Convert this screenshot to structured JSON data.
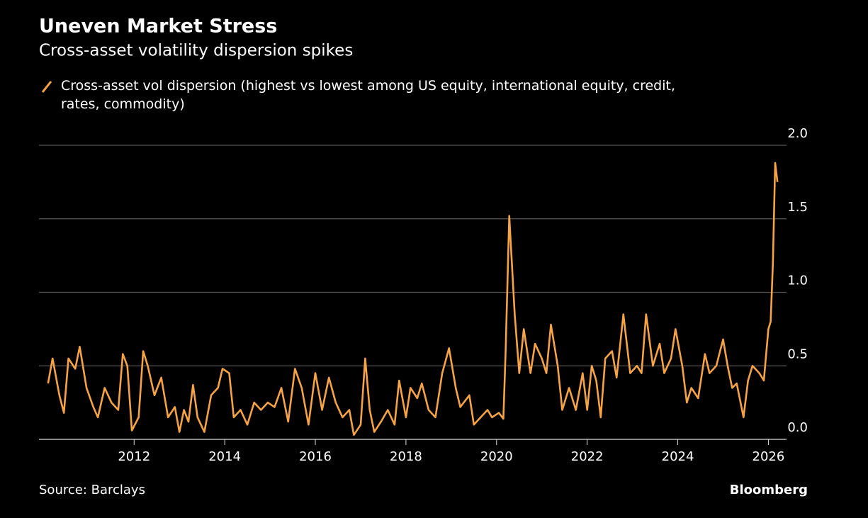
{
  "chart_data": {
    "type": "line",
    "title": "Uneven Market Stress",
    "subtitle": "Cross-asset volatility dispersion spikes",
    "source": "Source: Barclays",
    "brand": "Bloomberg",
    "grid": true,
    "x": [
      2010.1,
      2010.2,
      2010.35,
      2010.45,
      2010.55,
      2010.7,
      2010.8,
      2010.95,
      2011.1,
      2011.2,
      2011.35,
      2011.5,
      2011.65,
      2011.75,
      2011.85,
      2011.95,
      2012.1,
      2012.2,
      2012.3,
      2012.45,
      2012.6,
      2012.75,
      2012.9,
      2013.0,
      2013.1,
      2013.2,
      2013.3,
      2013.4,
      2013.55,
      2013.7,
      2013.85,
      2013.95,
      2014.1,
      2014.2,
      2014.35,
      2014.5,
      2014.65,
      2014.8,
      2014.95,
      2015.1,
      2015.25,
      2015.4,
      2015.55,
      2015.7,
      2015.85,
      2016.0,
      2016.15,
      2016.3,
      2016.45,
      2016.6,
      2016.75,
      2016.85,
      2017.0,
      2017.1,
      2017.2,
      2017.3,
      2017.45,
      2017.6,
      2017.75,
      2017.85,
      2018.0,
      2018.1,
      2018.25,
      2018.35,
      2018.5,
      2018.65,
      2018.8,
      2018.95,
      2019.1,
      2019.2,
      2019.4,
      2019.5,
      2019.65,
      2019.8,
      2019.9,
      2020.05,
      2020.15,
      2020.2,
      2020.28,
      2020.4,
      2020.5,
      2020.6,
      2020.75,
      2020.85,
      2021.0,
      2021.1,
      2021.2,
      2021.35,
      2021.45,
      2021.6,
      2021.75,
      2021.9,
      2022.0,
      2022.1,
      2022.2,
      2022.3,
      2022.4,
      2022.55,
      2022.65,
      2022.8,
      2022.95,
      2023.1,
      2023.2,
      2023.3,
      2023.45,
      2023.6,
      2023.7,
      2023.85,
      2023.95,
      2024.1,
      2024.2,
      2024.3,
      2024.45,
      2024.6,
      2024.7,
      2024.85,
      2025.0,
      2025.1,
      2025.2,
      2025.3,
      2025.45,
      2025.55,
      2025.65,
      2025.8,
      2025.9,
      2026.0,
      2026.05,
      2026.1,
      2026.15,
      2026.2
    ],
    "series": [
      {
        "name": "Cross-asset vol dispersion (highest vs lowest among US equity, international equity, credit, rates, commodity)",
        "color": "#f6a345",
        "values": [
          0.38,
          0.55,
          0.3,
          0.18,
          0.55,
          0.48,
          0.63,
          0.35,
          0.22,
          0.15,
          0.35,
          0.25,
          0.2,
          0.58,
          0.5,
          0.06,
          0.15,
          0.6,
          0.5,
          0.3,
          0.42,
          0.15,
          0.22,
          0.05,
          0.2,
          0.12,
          0.37,
          0.15,
          0.05,
          0.3,
          0.35,
          0.48,
          0.45,
          0.15,
          0.2,
          0.1,
          0.25,
          0.2,
          0.25,
          0.22,
          0.35,
          0.12,
          0.48,
          0.35,
          0.1,
          0.45,
          0.2,
          0.42,
          0.25,
          0.15,
          0.2,
          0.03,
          0.1,
          0.55,
          0.2,
          0.05,
          0.12,
          0.2,
          0.1,
          0.4,
          0.15,
          0.35,
          0.28,
          0.38,
          0.2,
          0.15,
          0.45,
          0.62,
          0.35,
          0.22,
          0.3,
          0.1,
          0.15,
          0.2,
          0.15,
          0.18,
          0.14,
          0.6,
          1.52,
          0.85,
          0.45,
          0.75,
          0.45,
          0.65,
          0.55,
          0.45,
          0.78,
          0.5,
          0.2,
          0.35,
          0.2,
          0.45,
          0.2,
          0.5,
          0.4,
          0.15,
          0.55,
          0.6,
          0.42,
          0.85,
          0.45,
          0.5,
          0.45,
          0.85,
          0.5,
          0.65,
          0.45,
          0.55,
          0.75,
          0.5,
          0.25,
          0.35,
          0.28,
          0.58,
          0.45,
          0.5,
          0.68,
          0.5,
          0.35,
          0.38,
          0.15,
          0.4,
          0.5,
          0.45,
          0.4,
          0.75,
          0.8,
          1.2,
          1.88,
          1.75
        ]
      }
    ],
    "xlim": [
      2009.9,
      2026.4
    ],
    "xticks": [
      2012,
      2014,
      2016,
      2018,
      2020,
      2022,
      2024,
      2026
    ],
    "ylim": [
      0,
      2
    ],
    "yticks": [
      {
        "value": 0,
        "label": "0.0"
      },
      {
        "value": 0.5,
        "label": "0.5"
      },
      {
        "value": 1,
        "label": "1.0"
      },
      {
        "value": 1.5,
        "label": "1.5"
      },
      {
        "value": 2,
        "label": "2.0"
      }
    ]
  }
}
